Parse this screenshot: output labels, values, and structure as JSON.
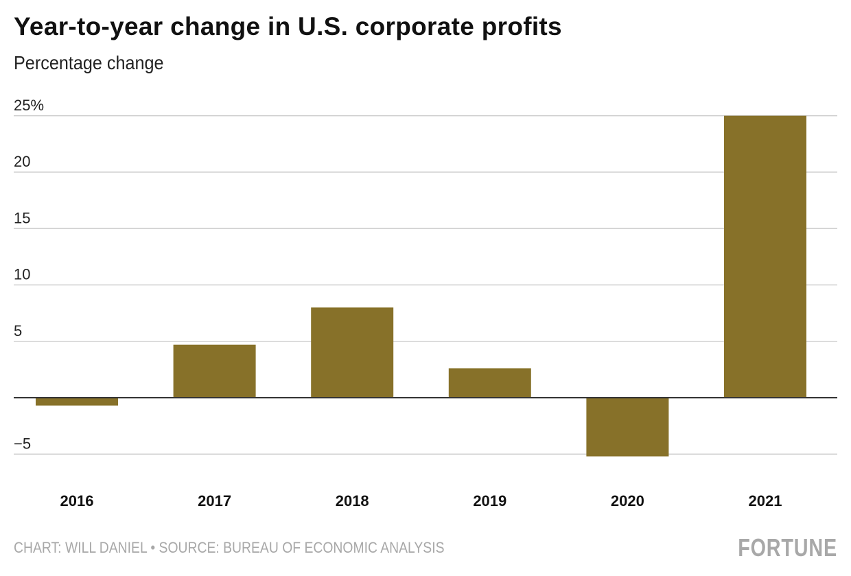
{
  "chart_data": {
    "type": "bar",
    "title": "Year-to-year change in U.S. corporate profits",
    "subtitle": "Percentage change",
    "categories": [
      "2016",
      "2017",
      "2018",
      "2019",
      "2020",
      "2021"
    ],
    "values": [
      -0.7,
      4.7,
      8.0,
      2.6,
      -5.2,
      25.0
    ],
    "ylim": [
      -5,
      25
    ],
    "yticks": [
      -5,
      0,
      5,
      10,
      15,
      20,
      25
    ],
    "ytick_labels": [
      "−5",
      "",
      "5",
      "10",
      "15",
      "20",
      "25%"
    ],
    "grid": true,
    "bar_color": "#877129",
    "xlabel": "",
    "ylabel": ""
  },
  "footer": {
    "credit": "CHART: WILL DANIEL • SOURCE: BUREAU OF ECONOMIC ANALYSIS",
    "logo": "FORTUNE"
  }
}
